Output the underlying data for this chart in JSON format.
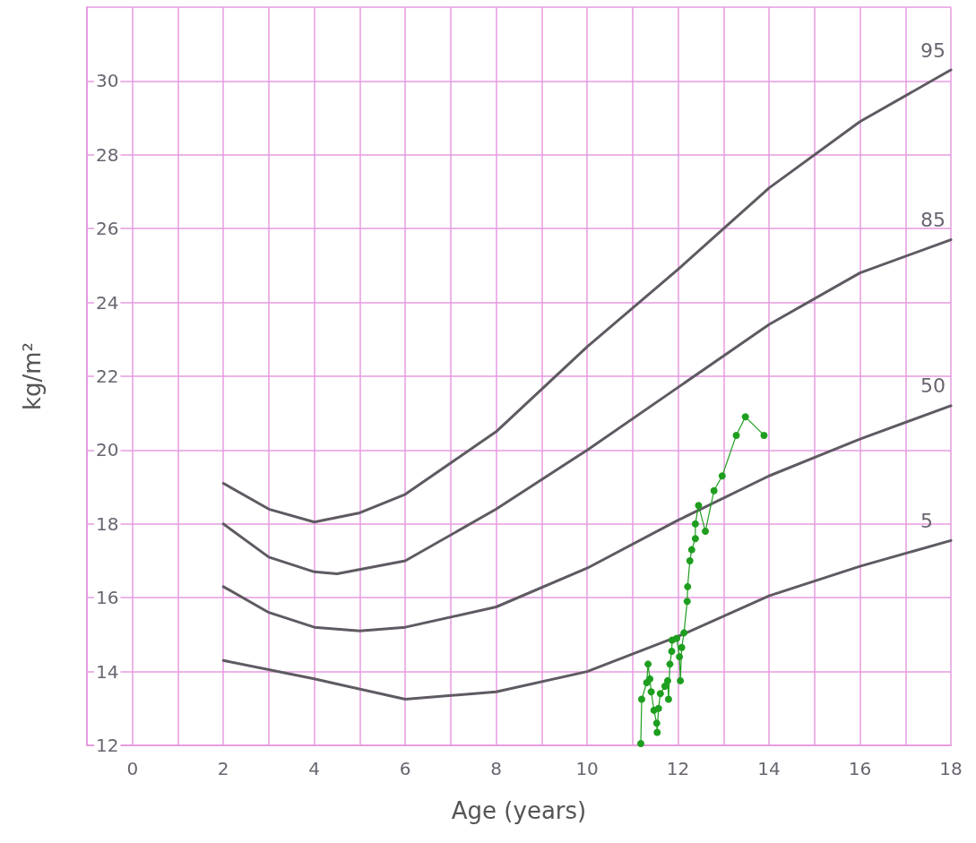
{
  "chart_data": {
    "type": "line",
    "xlabel": "Age (years)",
    "ylabel": "kg/m²",
    "xlim": [
      -1,
      18
    ],
    "ylim": [
      12,
      32
    ],
    "xticks": [
      {
        "value": -1,
        "label": null
      },
      0,
      {
        "value": 1,
        "label": null
      },
      2,
      {
        "value": 3,
        "label": null
      },
      4,
      {
        "value": 5,
        "label": null
      },
      6,
      {
        "value": 7,
        "label": null
      },
      8,
      {
        "value": 9,
        "label": null
      },
      10,
      {
        "value": 11,
        "label": null
      },
      12,
      {
        "value": 13,
        "label": null
      },
      14,
      {
        "value": 15,
        "label": null
      },
      16,
      {
        "value": 17,
        "label": null
      },
      18
    ],
    "yticks": [
      12,
      14,
      16,
      18,
      20,
      22,
      24,
      26,
      28,
      30,
      {
        "value": 32,
        "label": null
      }
    ],
    "grid": true,
    "legend": false,
    "line_style": "solid",
    "series": [
      {
        "name": "95",
        "color": "#5f5a62",
        "marker": "none",
        "x": [
          2,
          3,
          4,
          5,
          6,
          8,
          10,
          12,
          14,
          16,
          18
        ],
        "values": [
          19.1,
          18.4,
          18.05,
          18.3,
          18.8,
          20.5,
          22.8,
          24.9,
          27.1,
          28.9,
          30.3
        ]
      },
      {
        "name": "85",
        "color": "#5f5a62",
        "marker": "none",
        "x": [
          2,
          3,
          4,
          4.5,
          6,
          8,
          10,
          12,
          14,
          16,
          18
        ],
        "values": [
          18.0,
          17.1,
          16.7,
          16.65,
          17.0,
          18.4,
          20.0,
          21.7,
          23.4,
          24.8,
          25.7
        ]
      },
      {
        "name": "50",
        "color": "#5f5a62",
        "marker": "none",
        "x": [
          2,
          3,
          4,
          5,
          6,
          8,
          10,
          12,
          14,
          16,
          18
        ],
        "values": [
          16.3,
          15.6,
          15.2,
          15.1,
          15.2,
          15.75,
          16.8,
          18.1,
          19.3,
          20.3,
          21.2
        ]
      },
      {
        "name": "5",
        "color": "#5f5a62",
        "marker": "none",
        "x": [
          2,
          4,
          6,
          8,
          10,
          12,
          14,
          16,
          18
        ],
        "values": [
          14.3,
          13.8,
          13.25,
          13.45,
          14.0,
          14.95,
          16.05,
          16.85,
          17.55
        ]
      },
      {
        "color": "#1e9e1e",
        "marker": "circle",
        "x": [
          11.18,
          11.2,
          11.31,
          11.34,
          11.38,
          11.41,
          11.47,
          11.53,
          11.54,
          11.57,
          11.61,
          11.71,
          11.77,
          11.79,
          11.82,
          11.86,
          11.87,
          11.97,
          12.03,
          12.05,
          12.08,
          12.13,
          12.2,
          12.21,
          12.26,
          12.3,
          12.38,
          12.38,
          12.45,
          12.6,
          12.79,
          12.97,
          13.28,
          13.48,
          13.89
        ],
        "values": [
          12.05,
          13.25,
          13.7,
          14.2,
          13.8,
          13.45,
          12.95,
          12.6,
          12.35,
          13.0,
          13.4,
          13.6,
          13.75,
          13.25,
          14.2,
          14.55,
          14.85,
          14.9,
          14.4,
          13.75,
          14.65,
          15.05,
          15.9,
          16.3,
          17.0,
          17.3,
          17.6,
          18.0,
          18.5,
          17.8,
          18.9,
          19.3,
          20.4,
          20.9,
          20.4
        ]
      }
    ]
  }
}
